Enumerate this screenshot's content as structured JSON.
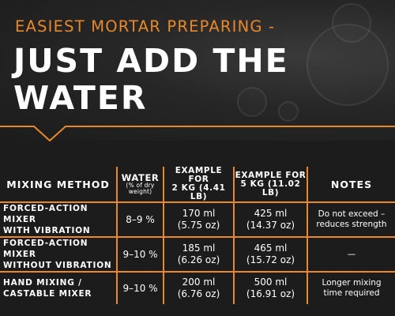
{
  "header": {
    "kicker": "EASIEST MORTAR PREPARING -",
    "headline_line1": "JUST ADD THE",
    "headline_line2": "WATER"
  },
  "colors": {
    "accent": "#e8882a",
    "background": "#1e1e1e",
    "text": "#ffffff"
  },
  "table": {
    "headers": {
      "method": "MIXING METHOD",
      "water_main": "WATER",
      "water_sub1": "(% of dry",
      "water_sub2": "weight)",
      "ex2_line1": "EXAMPLE FOR",
      "ex2_line2": "2 KG (4.41 LB)",
      "ex5_line1": "EXAMPLE FOR",
      "ex5_line2": "5 KG (11.02 LB)",
      "notes": "NOTES"
    },
    "rows": [
      {
        "method_line1": "FORCED-ACTION MIXER",
        "method_line2": "WITH VIBRATION",
        "water": "8–9 %",
        "ex2_ml": "170 ml",
        "ex2_oz": "(5.75 oz)",
        "ex5_ml": "425 ml",
        "ex5_oz": "(14.37 oz)",
        "note_line1": "Do not exceed –",
        "note_line2": "reduces strength"
      },
      {
        "method_line1": "FORCED-ACTION MIXER",
        "method_line2": "WITHOUT VIBRATION",
        "water": "9–10 %",
        "ex2_ml": "185 ml",
        "ex2_oz": "(6.26 oz)",
        "ex5_ml": "465 ml",
        "ex5_oz": "(15.72 oz)",
        "note_line1": "—",
        "note_line2": ""
      },
      {
        "method_line1": "HAND MIXING /",
        "method_line2": "CASTABLE MIXER",
        "water": "9–10 %",
        "ex2_ml": "200 ml",
        "ex2_oz": "(6.76 oz)",
        "ex5_ml": "500 ml",
        "ex5_oz": "(16.91 oz)",
        "note_line1": "Longer mixing",
        "note_line2": "time required"
      }
    ]
  }
}
